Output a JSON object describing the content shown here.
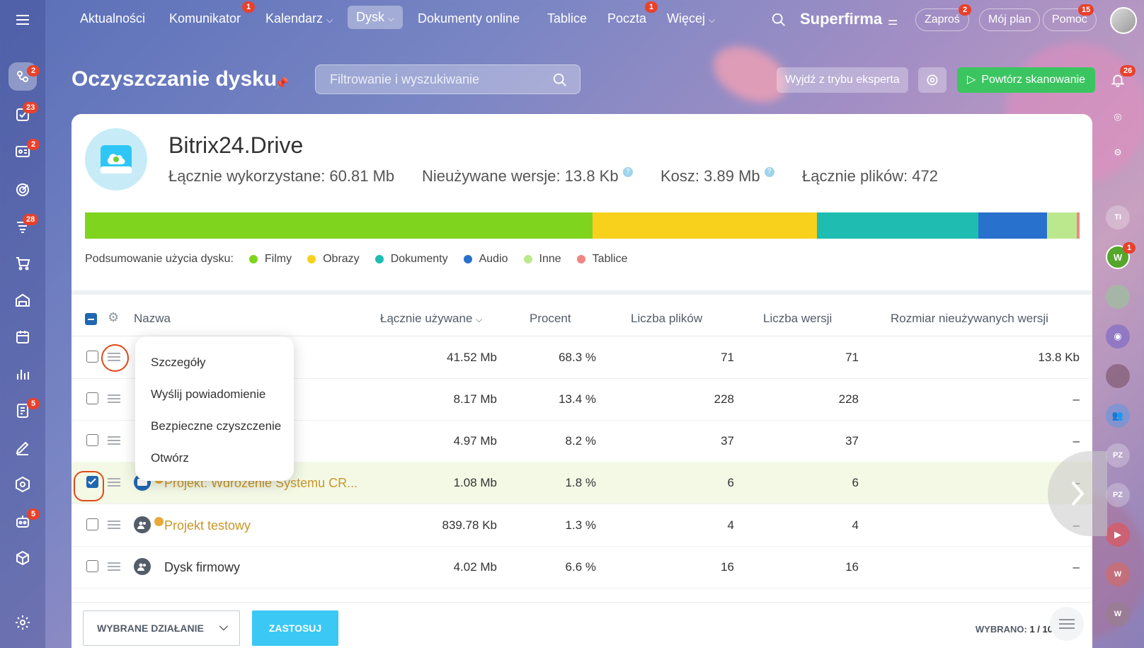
{
  "topnav": {
    "items": [
      "Aktualności",
      "Komunikator",
      "Kalendarz",
      "Dysk",
      "Dokumenty online",
      "Tablice",
      "Poczta",
      "Więcej"
    ],
    "komunikator_badge": "1",
    "poczta_badge": "1",
    "brand": "Superfirma",
    "invite": "Zaproś",
    "invite_badge": "2",
    "myplan": "Mój plan",
    "help": "Pomoc",
    "help_badge": "15"
  },
  "leftbar": {
    "badges": {
      "activity": "2",
      "tasks": "23",
      "crm": "2",
      "feed": "28",
      "docs": "5",
      "bot": "5"
    }
  },
  "rightbar": {
    "bell_badge": "26",
    "w_badge": "1",
    "avatars": [
      "TI",
      "W",
      "PZ",
      "PZ",
      "W",
      "W"
    ]
  },
  "page": {
    "title": "Oczyszczanie dysku",
    "search_placeholder": "Filtrowanie i wyszukiwanie",
    "expert_button": "Wyjdź z trybu eksperta",
    "rescan_button": "Powtórz skanowanie"
  },
  "drive": {
    "name": "Bitrix24.Drive",
    "total_used": "Łącznie wykorzystane: 60.81 Mb",
    "unused_versions": "Nieużywane wersje: 13.8 Kb",
    "trash": "Kosz: 3.89 Mb",
    "total_files": "Łącznie plików: 472"
  },
  "usage": {
    "label": "Podsumowanie użycia dysku:",
    "segments": [
      {
        "name": "Filmy",
        "color": "#7fd41e",
        "pct": 51
      },
      {
        "name": "Obrazy",
        "color": "#f8d11d",
        "pct": 22.6
      },
      {
        "name": "Dokumenty",
        "color": "#1ebcb1",
        "pct": 16.2
      },
      {
        "name": "Audio",
        "color": "#2871cc",
        "pct": 6.9
      },
      {
        "name": "Inne",
        "color": "#bce88d",
        "pct": 3.0
      },
      {
        "name": "Tablice",
        "color": "#f18584",
        "pct": 0.3
      }
    ]
  },
  "table": {
    "headers": {
      "name": "Nazwa",
      "total": "Łącznie używane",
      "percent": "Procent",
      "files": "Liczba plików",
      "versions": "Liczba wersji",
      "unused": "Rozmiar nieużywanych wersji"
    },
    "rows": [
      {
        "name": "",
        "total": "41.52 Mb",
        "percent": "68.3 %",
        "files": "71",
        "versions": "71",
        "unused": "13.8 Kb"
      },
      {
        "name": "",
        "total": "8.17 Mb",
        "percent": "13.4 %",
        "files": "228",
        "versions": "228",
        "unused": "–"
      },
      {
        "name": "",
        "total": "4.97 Mb",
        "percent": "8.2 %",
        "files": "37",
        "versions": "37",
        "unused": "–"
      },
      {
        "name": "Projekt: Wdrożenie Systemu CR...",
        "total": "1.08 Mb",
        "percent": "1.8 %",
        "files": "6",
        "versions": "6",
        "unused": "–"
      },
      {
        "name": "Projekt testowy",
        "total": "839.78 Kb",
        "percent": "1.3 %",
        "files": "4",
        "versions": "4",
        "unused": "–"
      },
      {
        "name": "Dysk firmowy",
        "total": "4.02 Mb",
        "percent": "6.6 %",
        "files": "16",
        "versions": "16",
        "unused": "–"
      }
    ]
  },
  "popup": {
    "items": [
      "Szczegóły",
      "Wyślij powiadomienie",
      "Bezpieczne czyszczenie",
      "Otwórz"
    ]
  },
  "footer": {
    "action_select": "WYBRANE DZIAŁANIE",
    "apply": "ZASTOSUJ",
    "selected_label": "WYBRANO:",
    "selected_value": "1 / 10"
  }
}
